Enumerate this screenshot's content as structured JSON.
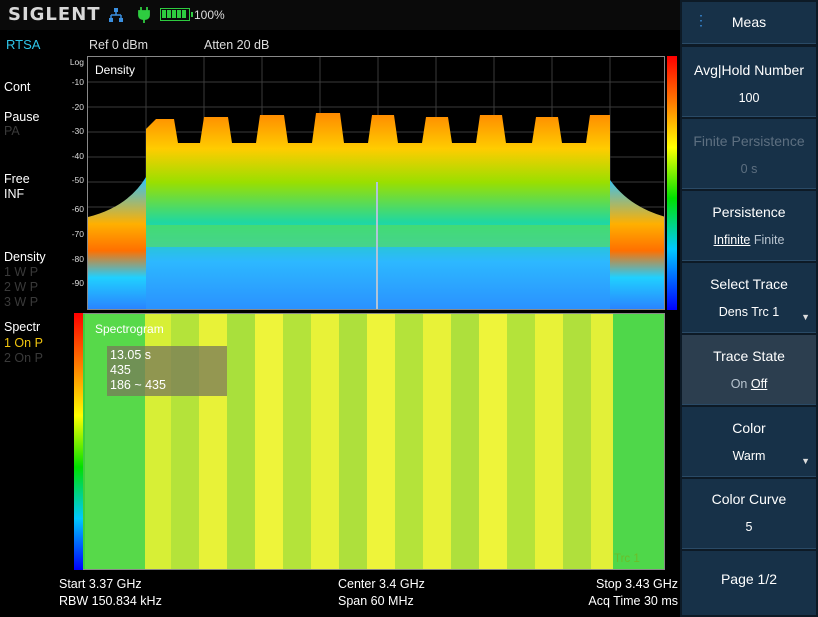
{
  "status": {
    "brand": "SIGLENT",
    "icons": [
      "network-icon",
      "power-plug-icon",
      "battery-icon"
    ],
    "battery_percent": "100%"
  },
  "header": {
    "mode": "RTSA",
    "ref": "Ref  0 dBm",
    "atten": "Atten   20 dB"
  },
  "left_panel": {
    "sweep": "Cont",
    "pause": "Pause",
    "pause_sub": "PA",
    "free": "Free",
    "free_sub": "INF",
    "density": "Density",
    "density_rows": [
      "1  W  P",
      "2  W  P",
      "3  W  P"
    ],
    "spectr": "Spectr",
    "spectr_row1": "1  On  P",
    "spectr_row2": "2  On  P"
  },
  "density_view": {
    "title": "Density",
    "scale": "Log",
    "y_ticks": [
      "-10",
      "-20",
      "-30",
      "-40",
      "-50",
      "-60",
      "-70",
      "-80",
      "-90"
    ]
  },
  "spectrogram": {
    "title": "Spectrogram",
    "marker_time": "13.05 s",
    "marker_index": "435",
    "marker_range": "186 ~ 435",
    "trace_label": "Trc 1"
  },
  "footer": {
    "start": "Start  3.37 GHz",
    "rbw": "RBW  150.834 kHz",
    "center": "Center  3.4 GHz",
    "span": "Span  60 MHz",
    "stop": "Stop  3.43 GHz",
    "acq_time": "Acq Time  30 ms"
  },
  "menu": {
    "header": "Meas",
    "avg_hold": {
      "label": "Avg|Hold Number",
      "value": "100"
    },
    "finite_persistence": {
      "label": "Finite Persistence",
      "value": "0 s"
    },
    "persistence": {
      "label": "Persistence",
      "opt1": "Infinite",
      "opt2": "Finite"
    },
    "select_trace": {
      "label": "Select Trace",
      "value": "Dens Trc 1"
    },
    "trace_state": {
      "label": "Trace State",
      "opt1": "On",
      "opt2": "Off"
    },
    "color": {
      "label": "Color",
      "value": "Warm"
    },
    "color_curve": {
      "label": "Color Curve",
      "value": "5"
    },
    "page": "Page 1/2"
  },
  "colors": {
    "accent_cyan": "#2ec4e8",
    "menu_bg": "#173148",
    "highlight_yellow": "#f1c40f"
  }
}
